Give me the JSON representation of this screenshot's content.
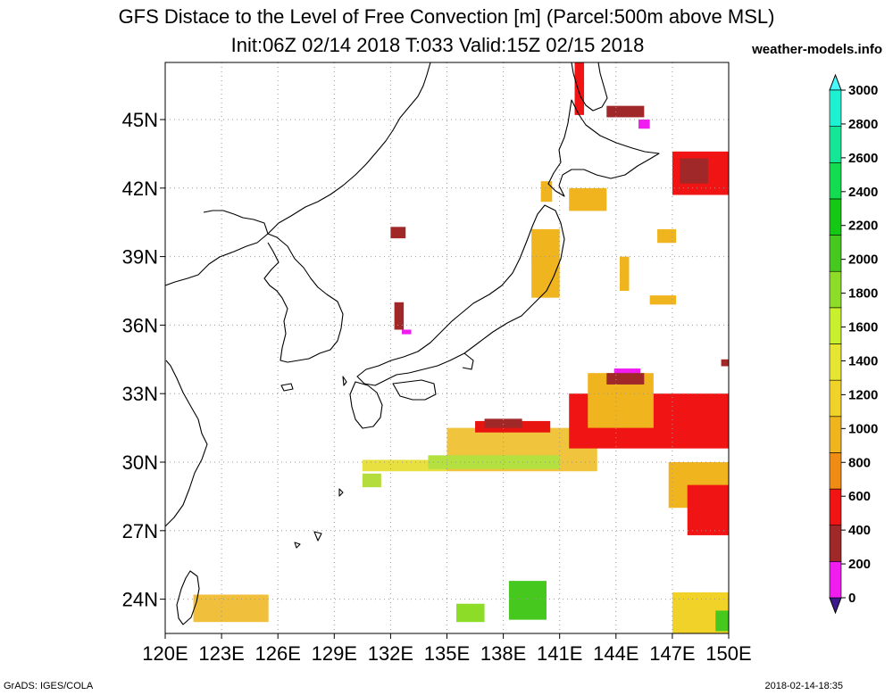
{
  "header": {
    "title_line1": "GFS Distace to the Level of Free Convection [m] (Parcel:500m above MSL)",
    "title_line2": "Init:06Z 02/14 2018 T:033 Valid:15Z 02/15 2018",
    "site": "weather-models.info"
  },
  "footer": {
    "left": "GrADS: IGES/COLA",
    "right": "2018-02-14-18:35"
  },
  "map": {
    "lon_range": [
      120,
      150
    ],
    "lat_range": [
      22.5,
      47.5
    ],
    "lon_ticks": [
      "120E",
      "123E",
      "126E",
      "129E",
      "132E",
      "135E",
      "138E",
      "141E",
      "144E",
      "147E",
      "150E"
    ],
    "lat_ticks": [
      "24N",
      "27N",
      "30N",
      "33N",
      "36N",
      "39N",
      "42N",
      "45N"
    ],
    "lon_tick_values": [
      120,
      123,
      126,
      129,
      132,
      135,
      138,
      141,
      144,
      147,
      150
    ],
    "lat_tick_values": [
      24,
      27,
      30,
      33,
      36,
      39,
      42,
      45
    ],
    "gridlines": "dotted"
  },
  "colorbar": {
    "labels": [
      "0",
      "200",
      "400",
      "600",
      "800",
      "1000",
      "1200",
      "1400",
      "1600",
      "1800",
      "2000",
      "2200",
      "2400",
      "2600",
      "2800",
      "3000"
    ],
    "colors": [
      "#3c1a8c",
      "#f01cf0",
      "#a02828",
      "#f01414",
      "#f08c14",
      "#f0b41e",
      "#f0d228",
      "#e6e632",
      "#c8f02d",
      "#8cdc28",
      "#46c81e",
      "#14c814",
      "#14dc50",
      "#14e696",
      "#1ef0d2",
      "#46fafa"
    ],
    "arrows": "both ends"
  },
  "fields": [
    {
      "name": "southern-band",
      "color": "#f0c43c",
      "lon_min": 135.0,
      "lon_max": 143.0,
      "lat_min": 29.6,
      "lat_max": 31.5
    },
    {
      "name": "southern-band-west",
      "color": "#e8e040",
      "lon_min": 130.5,
      "lon_max": 135.0,
      "lat_min": 29.6,
      "lat_max": 30.1
    },
    {
      "name": "southern-band-green",
      "color": "#b4e040",
      "lon_min": 134.0,
      "lon_max": 141.0,
      "lat_min": 29.7,
      "lat_max": 30.3
    },
    {
      "name": "amami-patch",
      "color": "#b4dc3c",
      "lon_min": 130.5,
      "lon_max": 131.5,
      "lat_min": 28.9,
      "lat_max": 29.5
    },
    {
      "name": "band-red-top",
      "color": "#e8140f",
      "lon_min": 136.5,
      "lon_max": 140.5,
      "lat_min": 31.3,
      "lat_max": 31.8
    },
    {
      "name": "band-brown-top",
      "color": "#a02828",
      "lon_min": 137.0,
      "lon_max": 139.0,
      "lat_min": 31.5,
      "lat_max": 31.9
    },
    {
      "name": "east-red-streak",
      "color": "#f01414",
      "lon_min": 141.5,
      "lon_max": 150.0,
      "lat_min": 30.6,
      "lat_max": 33.0
    },
    {
      "name": "izu-patch",
      "color": "#f0b41e",
      "lon_min": 142.5,
      "lon_max": 146.0,
      "lat_min": 31.5,
      "lat_max": 33.9
    },
    {
      "name": "izu-magenta",
      "color": "#f01cf0",
      "lon_min": 143.9,
      "lon_max": 145.3,
      "lat_min": 33.8,
      "lat_max": 34.1
    },
    {
      "name": "izu-brown",
      "color": "#a02828",
      "lon_min": 143.5,
      "lon_max": 145.5,
      "lat_min": 33.4,
      "lat_max": 33.9
    },
    {
      "name": "se-patch",
      "color": "#f0b41e",
      "lon_min": 146.8,
      "lon_max": 150.0,
      "lat_min": 28.0,
      "lat_max": 30.0
    },
    {
      "name": "se-red",
      "color": "#f01414",
      "lon_min": 147.8,
      "lon_max": 150.0,
      "lat_min": 26.8,
      "lat_max": 29.0
    },
    {
      "name": "sw-patch",
      "color": "#f0c03c",
      "lon_min": 121.5,
      "lon_max": 125.5,
      "lat_min": 23.0,
      "lat_max": 24.2
    },
    {
      "name": "ogasawara-green",
      "color": "#46c81e",
      "lon_min": 138.3,
      "lon_max": 140.3,
      "lat_min": 23.1,
      "lat_max": 24.8
    },
    {
      "name": "minami-green",
      "color": "#8cdc28",
      "lon_min": 135.5,
      "lon_max": 137.0,
      "lat_min": 23.0,
      "lat_max": 23.8
    },
    {
      "name": "far-se",
      "color": "#f0d228",
      "lon_min": 147.0,
      "lon_max": 150.0,
      "lat_min": 22.5,
      "lat_max": 24.3
    },
    {
      "name": "far-se-green",
      "color": "#46c81e",
      "lon_min": 149.3,
      "lon_max": 150.0,
      "lat_min": 22.6,
      "lat_max": 23.5
    },
    {
      "name": "hokkaido-red",
      "color": "#f01414",
      "lon_min": 141.8,
      "lon_max": 142.3,
      "lat_min": 45.2,
      "lat_max": 47.5
    },
    {
      "name": "kuril-red",
      "color": "#f01414",
      "lon_min": 147.0,
      "lon_max": 150.0,
      "lat_min": 41.7,
      "lat_max": 43.6
    },
    {
      "name": "kuril-brown",
      "color": "#a02828",
      "lon_min": 147.4,
      "lon_max": 148.9,
      "lat_min": 42.2,
      "lat_max": 43.3
    },
    {
      "name": "okhotsk-brown",
      "color": "#a02828",
      "lon_min": 143.5,
      "lon_max": 145.5,
      "lat_min": 45.1,
      "lat_max": 45.6
    },
    {
      "name": "okhotsk-magenta",
      "color": "#f01cf0",
      "lon_min": 145.2,
      "lon_max": 145.8,
      "lat_min": 44.6,
      "lat_max": 45.0
    },
    {
      "name": "tohoku-orange",
      "color": "#f0b41e",
      "lon_min": 139.5,
      "lon_max": 141.0,
      "lat_min": 37.2,
      "lat_max": 40.2
    },
    {
      "name": "hokkaido-west",
      "color": "#f0b41e",
      "lon_min": 140.0,
      "lon_max": 140.6,
      "lat_min": 41.4,
      "lat_max": 42.3
    },
    {
      "name": "pacific-42n",
      "color": "#f0b41e",
      "lon_min": 141.5,
      "lon_max": 143.5,
      "lat_min": 41.0,
      "lat_max": 42.0
    },
    {
      "name": "pacific-38n",
      "color": "#f0b41e",
      "lon_min": 145.8,
      "lon_max": 147.2,
      "lat_min": 36.9,
      "lat_max": 37.3
    },
    {
      "name": "pacific-40n",
      "color": "#f0b41e",
      "lon_min": 146.2,
      "lon_max": 147.2,
      "lat_min": 39.6,
      "lat_max": 40.2
    },
    {
      "name": "pacific-39n",
      "color": "#f0b41e",
      "lon_min": 144.2,
      "lon_max": 144.7,
      "lat_min": 37.5,
      "lat_max": 39.0
    },
    {
      "name": "korea-brown",
      "color": "#a02828",
      "lon_min": 132.2,
      "lon_max": 132.7,
      "lat_min": 35.8,
      "lat_max": 37.0
    },
    {
      "name": "korea-magenta",
      "color": "#f01cf0",
      "lon_min": 132.6,
      "lon_max": 133.1,
      "lat_min": 35.6,
      "lat_max": 35.8
    },
    {
      "name": "sea-japan-brown",
      "color": "#a02828",
      "lon_min": 132.0,
      "lon_max": 132.8,
      "lat_min": 39.8,
      "lat_max": 40.3
    },
    {
      "name": "east-brown-dot",
      "color": "#a02828",
      "lon_min": 149.6,
      "lon_max": 150.0,
      "lat_min": 34.2,
      "lat_max": 34.5
    }
  ]
}
